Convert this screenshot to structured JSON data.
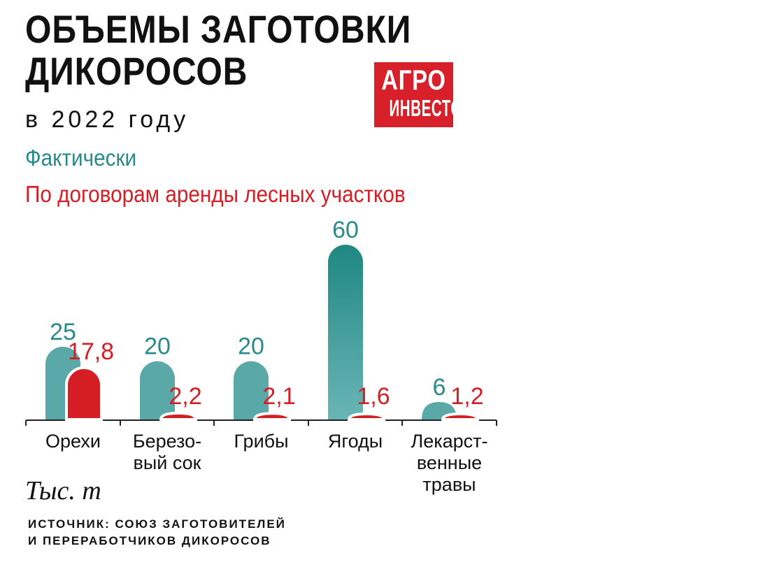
{
  "header": {
    "title": "ОБЪЕМЫ ЗАГОТОВКИ ДИКОРОСОВ",
    "subtitle": "в 2022 году"
  },
  "logo": {
    "line1": "АГРО",
    "line2": "ИНВЕСТОР"
  },
  "colors": {
    "actual": "#5aa8a8",
    "actual_dark": "#268a86",
    "actual_label": "#2a8a89",
    "lease": "#d51e24",
    "axis": "#222222",
    "logo_bg": "#d8202a"
  },
  "chart_data": {
    "type": "bar",
    "categories": [
      [
        "Орехи"
      ],
      [
        "Березо-",
        "вый сок"
      ],
      [
        "Грибы"
      ],
      [
        "Ягоды"
      ],
      [
        "Лекарст-",
        "венные",
        "травы"
      ]
    ],
    "series": [
      {
        "name": "Фактически",
        "values": [
          25,
          20,
          20,
          60,
          6
        ],
        "labels": [
          "25",
          "20",
          "20",
          "60",
          "6"
        ]
      },
      {
        "name": "По договорам аренды лесных участков",
        "values": [
          17.8,
          2.2,
          2.1,
          1.6,
          1.2
        ],
        "labels": [
          "17,8",
          "2,2",
          "2,1",
          "1,6",
          "1,2"
        ]
      }
    ],
    "ylim": [
      0,
      60
    ],
    "grid": false,
    "legend": "top-left"
  },
  "footer": {
    "unit": "Тыс. т",
    "source": "ИСТОЧНИК: СОЮЗ ЗАГОТОВИТЕЛЕЙ\nИ ПЕРЕРАБОТЧИКОВ ДИКОРОСОВ"
  }
}
